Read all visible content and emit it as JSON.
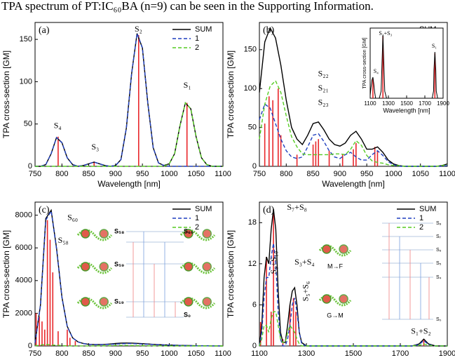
{
  "header_text": "TPA spectrum of PT:IC₆₀BA (n=9) can be seen in the Supporting Information.",
  "chart_data": [
    {
      "type": "line",
      "panel_label": "(a)",
      "xlabel": "Wavelength [nm]",
      "ylabel": "TPA cross-section [GM]",
      "xlim": [
        750,
        1100
      ],
      "xticks": [
        750,
        800,
        850,
        900,
        950,
        1000,
        1050,
        1100
      ],
      "ylim": [
        0,
        170
      ],
      "yticks": [
        0,
        50,
        100,
        150
      ],
      "legend": "upper right",
      "x": [
        750,
        760,
        770,
        780,
        790,
        800,
        810,
        820,
        830,
        840,
        850,
        860,
        870,
        880,
        890,
        900,
        910,
        920,
        930,
        940,
        950,
        960,
        970,
        980,
        990,
        1000,
        1010,
        1020,
        1030,
        1040,
        1050,
        1060,
        1070,
        1080,
        1090,
        1100
      ],
      "series": [
        {
          "name": "SUM",
          "color": "#000000",
          "style": "solid",
          "values": [
            0,
            0,
            2,
            15,
            34,
            28,
            10,
            2,
            0,
            1,
            3,
            5,
            3,
            1,
            0,
            1,
            8,
            45,
            110,
            157,
            140,
            75,
            22,
            4,
            1,
            3,
            15,
            48,
            75,
            68,
            35,
            10,
            2,
            0,
            0,
            0
          ]
        },
        {
          "name": "1",
          "color": "#1f3fbf",
          "style": "dashed",
          "values": [
            0,
            0,
            2,
            15,
            34,
            28,
            10,
            2,
            0,
            1,
            3,
            5,
            3,
            1,
            0,
            1,
            8,
            45,
            110,
            157,
            140,
            75,
            22,
            4,
            1,
            0,
            0,
            0,
            0,
            0,
            0,
            0,
            0,
            0,
            0,
            0
          ]
        },
        {
          "name": "2",
          "color": "#55cc22",
          "style": "dashed",
          "values": [
            0,
            0,
            0,
            0,
            0,
            0,
            0,
            0,
            0,
            0,
            0,
            0,
            0,
            0,
            0,
            0,
            0,
            0,
            0,
            0,
            0,
            0,
            0,
            0,
            0,
            3,
            15,
            48,
            75,
            68,
            35,
            10,
            2,
            0,
            0,
            0
          ]
        }
      ],
      "sticks": {
        "color": "#e8262a",
        "x": [
          793,
          860,
          943,
          1033
        ],
        "values": [
          35,
          5,
          155,
          75
        ]
      },
      "annotations": [
        "S₄",
        "S₃",
        "S₂",
        "S₁"
      ]
    },
    {
      "type": "line",
      "panel_label": "(b)",
      "xlabel": "Wavelength [nm]",
      "ylabel": "TPA cross-section [GM]",
      "xlim": [
        750,
        1100
      ],
      "xticks": [
        750,
        800,
        850,
        900,
        950,
        1000,
        1050,
        1100
      ],
      "ylim": [
        0,
        185
      ],
      "yticks": [
        0,
        50,
        100,
        150
      ],
      "legend": "upper right",
      "x": [
        750,
        760,
        770,
        780,
        790,
        800,
        810,
        820,
        830,
        840,
        850,
        860,
        870,
        880,
        890,
        900,
        910,
        920,
        930,
        940,
        950,
        960,
        970,
        980,
        990,
        1000,
        1010,
        1020,
        1030,
        1040,
        1050,
        1060,
        1070,
        1080,
        1090,
        1100
      ],
      "series": [
        {
          "name": "SUM",
          "color": "#000000",
          "style": "solid",
          "values": [
            95,
            160,
            178,
            165,
            130,
            85,
            50,
            35,
            28,
            40,
            55,
            57,
            47,
            35,
            28,
            26,
            30,
            40,
            45,
            35,
            22,
            22,
            25,
            18,
            8,
            3,
            1,
            0,
            0,
            0,
            0,
            0,
            0,
            0,
            1,
            3
          ]
        },
        {
          "name": "1",
          "color": "#1f3fbf",
          "style": "dashed",
          "values": [
            60,
            80,
            75,
            55,
            35,
            20,
            12,
            10,
            12,
            25,
            40,
            42,
            32,
            20,
            12,
            10,
            15,
            18,
            12,
            8,
            8,
            15,
            20,
            14,
            6,
            2,
            0,
            0,
            0,
            0,
            0,
            0,
            0,
            0,
            0,
            1
          ]
        },
        {
          "name": "2",
          "color": "#55cc22",
          "style": "dashed",
          "values": [
            35,
            80,
            103,
            110,
            95,
            65,
            38,
            25,
            16,
            15,
            15,
            15,
            15,
            15,
            16,
            16,
            15,
            22,
            33,
            27,
            14,
            7,
            5,
            4,
            2,
            1,
            1,
            0,
            0,
            0,
            0,
            0,
            0,
            0,
            1,
            2
          ]
        }
      ],
      "sticks": {
        "color": "#e8262a",
        "x": [
          760,
          768,
          775,
          785,
          790,
          820,
          850,
          855,
          860,
          880,
          905,
          925,
          930,
          965,
          970
        ],
        "values": [
          55,
          90,
          85,
          100,
          40,
          15,
          28,
          32,
          35,
          20,
          15,
          22,
          30,
          25,
          20
        ]
      },
      "annotations": [
        "S₂₂",
        "S₂₁",
        "S₂₃"
      ],
      "inset": {
        "type": "line",
        "xlabel": "Wavelength [nm]",
        "ylabel": "TPA cross-section [GM]",
        "xlim": [
          1100,
          1900
        ],
        "xticks": [
          1100,
          1300,
          1500,
          1700,
          1900
        ],
        "ylim": [
          0,
          50
        ],
        "x": [
          1100,
          1110,
          1120,
          1130,
          1140,
          1150,
          1160,
          1200,
          1220,
          1230,
          1240,
          1250,
          1260,
          1280,
          1700,
          1780,
          1795,
          1800,
          1810,
          1820,
          1825,
          1840,
          1900
        ],
        "series": [
          {
            "color": "#000000",
            "style": "solid",
            "values": [
              2,
              8,
              13,
              15,
              10,
              4,
              0,
              0,
              5,
              25,
              45,
              25,
              5,
              0,
              0,
              0,
              5,
              20,
              33,
              20,
              5,
              0,
              0
            ]
          }
        ],
        "sticks": {
          "color": "#e8262a",
          "x": [
            1130,
            1240,
            1810
          ],
          "values": [
            14,
            44,
            32
          ]
        },
        "annotations": [
          "S₄",
          "S₂+S₃",
          "S₁"
        ]
      }
    },
    {
      "type": "line",
      "panel_label": "(c)",
      "xlabel": "Wavelength [nm]",
      "ylabel": "TPA cross-section [GM]",
      "xlim": [
        750,
        1100
      ],
      "xticks": [
        750,
        800,
        850,
        900,
        950,
        1000,
        1050,
        1100
      ],
      "ylim": [
        0,
        8800
      ],
      "yticks": [
        0,
        2000,
        4000,
        6000,
        8000
      ],
      "legend": "upper right",
      "x": [
        750,
        760,
        770,
        780,
        790,
        800,
        810,
        820,
        830,
        840,
        850,
        860,
        870,
        880,
        890,
        900,
        910,
        920,
        930,
        940,
        950,
        960,
        970,
        980,
        990,
        1000,
        1010,
        1020,
        1030,
        1040,
        1050,
        1060,
        1070,
        1080,
        1090,
        1100
      ],
      "series": [
        {
          "name": "SUM",
          "color": "#000000",
          "style": "solid",
          "values": [
            200,
            2500,
            7800,
            8300,
            6000,
            3000,
            1200,
            500,
            250,
            150,
            100,
            90,
            90,
            100,
            120,
            150,
            170,
            180,
            175,
            160,
            140,
            120,
            100,
            80,
            65,
            55,
            45,
            35,
            28,
            20,
            15,
            10,
            8,
            5,
            3,
            2
          ]
        },
        {
          "name": "1",
          "color": "#1f3fbf",
          "style": "dashed",
          "values": [
            190,
            2450,
            7700,
            8250,
            5950,
            2980,
            1190,
            495,
            245,
            145,
            95,
            85,
            82,
            88,
            100,
            120,
            135,
            145,
            145,
            135,
            120,
            105,
            90,
            72,
            58,
            50,
            41,
            32,
            26,
            18,
            14,
            9,
            7,
            5,
            3,
            2
          ]
        },
        {
          "name": "2",
          "color": "#55cc22",
          "style": "dashed",
          "values": [
            10,
            50,
            100,
            50,
            50,
            20,
            10,
            5,
            5,
            5,
            5,
            5,
            8,
            12,
            20,
            30,
            35,
            35,
            30,
            25,
            20,
            15,
            10,
            8,
            7,
            5,
            4,
            3,
            2,
            2,
            1,
            1,
            1,
            0,
            0,
            0
          ]
        }
      ],
      "sticks": {
        "color": "#e8262a",
        "x": [
          752,
          758,
          763,
          768,
          773,
          778,
          783,
          793,
          810,
          815,
          825
        ],
        "values": [
          2000,
          1800,
          1500,
          1000,
          7700,
          6500,
          4500,
          900,
          1000,
          500,
          300
        ]
      },
      "annotations": [
        "S₆₀",
        "S₅₈"
      ],
      "inset_labels": [
        "S₅₈",
        "S₆₀",
        "S₅₉",
        "S₁₉",
        "S₀"
      ]
    },
    {
      "type": "line",
      "panel_label": "(d)",
      "xlabel": "Wavelength [nm]",
      "ylabel": "TPA cross-section [GM]",
      "xlim": [
        1100,
        1900
      ],
      "xticks": [
        1100,
        1300,
        1500,
        1700,
        1900
      ],
      "ylim": [
        0,
        21
      ],
      "yticks": [
        0,
        6,
        12,
        18
      ],
      "legend": "upper right",
      "x": [
        1100,
        1110,
        1120,
        1130,
        1140,
        1150,
        1160,
        1170,
        1180,
        1190,
        1200,
        1210,
        1220,
        1230,
        1240,
        1250,
        1260,
        1270,
        1280,
        1300,
        1750,
        1780,
        1800,
        1820,
        1850,
        1900
      ],
      "series": [
        {
          "name": "SUM",
          "color": "#000000",
          "style": "solid",
          "values": [
            0,
            3,
            10,
            13,
            12,
            17,
            20,
            17,
            8,
            2,
            0.5,
            0.5,
            3,
            6,
            8,
            8.5,
            6,
            2,
            0.5,
            0,
            0,
            0.3,
            1,
            0.3,
            0,
            0
          ]
        },
        {
          "name": "1",
          "color": "#1f3fbf",
          "style": "dashed",
          "values": [
            0,
            2,
            7,
            10,
            10,
            13,
            15,
            12,
            5,
            1,
            0,
            0,
            1,
            3,
            6,
            7,
            5,
            2,
            0.3,
            0,
            0,
            0.2,
            0.8,
            0.2,
            0,
            0
          ]
        },
        {
          "name": "2",
          "color": "#55cc22",
          "style": "dashed",
          "values": [
            0,
            1,
            3,
            3,
            2,
            4,
            5,
            5,
            3,
            1,
            0.5,
            0.5,
            2,
            3,
            2.5,
            2,
            1,
            0.3,
            0,
            0,
            0,
            0.1,
            0.3,
            0.1,
            0,
            0
          ]
        }
      ],
      "sticks": {
        "color": "#e8262a",
        "x": [
          1105,
          1130,
          1150,
          1160,
          1200,
          1230,
          1245,
          1255,
          1800
        ],
        "values": [
          3.5,
          13,
          5,
          19.5,
          1,
          6,
          7,
          5,
          1
        ]
      },
      "annotations": [
        "S₇+S₈",
        "S₉+S₁₀",
        "S₅+S₆",
        "S₃+S₄",
        "S₁+S₂"
      ],
      "inset_labels": [
        "S₈",
        "S₇",
        "S₆",
        "S₅",
        "S₄",
        "S₀",
        "M→F",
        "G→M"
      ]
    }
  ]
}
